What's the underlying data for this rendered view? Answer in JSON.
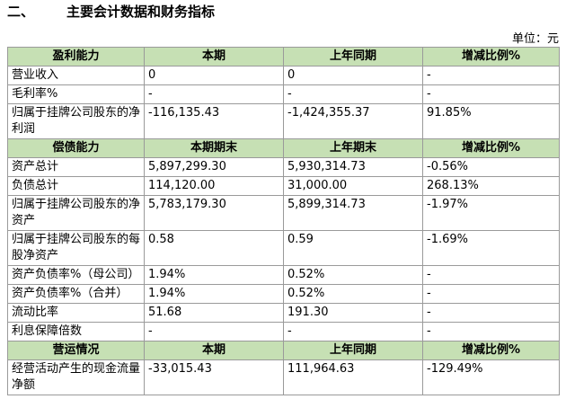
{
  "header": {
    "number": "二、",
    "title": "主要会计数据和财务指标",
    "unit": "单位：元"
  },
  "sections": [
    {
      "header": [
        "盈利能力",
        "本期",
        "上年同期",
        "增减比例%"
      ],
      "rows": [
        [
          "营业收入",
          "0",
          "0",
          "-"
        ],
        [
          "毛利率%",
          "-",
          "-",
          "-"
        ],
        [
          "归属于挂牌公司股东的净利润",
          "-116,135.43",
          "-1,424,355.37",
          "91.85%"
        ]
      ]
    },
    {
      "header": [
        "偿债能力",
        "本期期末",
        "上年期末",
        "增减比例%"
      ],
      "rows": [
        [
          "资产总计",
          "5,897,299.30",
          "5,930,314.73",
          "-0.56%"
        ],
        [
          "负债总计",
          "114,120.00",
          "31,000.00",
          "268.13%"
        ],
        [
          "归属于挂牌公司股东的净资产",
          "5,783,179.30",
          "5,899,314.73",
          "-1.97%"
        ],
        [
          "归属于挂牌公司股东的每股净资产",
          "0.58",
          "0.59",
          "-1.69%"
        ],
        [
          "资产负债率%（母公司）",
          "1.94%",
          "0.52%",
          "-"
        ],
        [
          "资产负债率%（合并）",
          "1.94%",
          "0.52%",
          "-"
        ],
        [
          "流动比率",
          "51.68",
          "191.30",
          "-"
        ],
        [
          "利息保障倍数",
          "-",
          "-",
          "-"
        ]
      ]
    },
    {
      "header": [
        "营运情况",
        "本期",
        "上年同期",
        "增减比例%"
      ],
      "rows": [
        [
          "经营活动产生的现金流量净额",
          "-33,015.43",
          "111,964.63",
          "-129.49%"
        ]
      ]
    }
  ]
}
